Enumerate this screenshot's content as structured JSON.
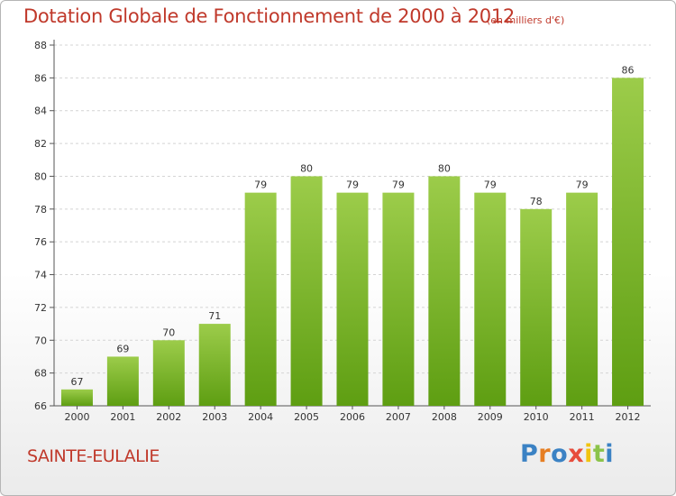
{
  "title": "Dotation Globale de Fonctionnement de 2000 à 2012",
  "subtitle": "(en milliers d'€)",
  "commune": "SAINTE-EULALIE",
  "logo": {
    "letters": [
      "P",
      "r",
      "o",
      "x",
      "i",
      "t",
      "i"
    ],
    "colors": [
      "#3b82c4",
      "#e67e22",
      "#3b82c4",
      "#e74c3c",
      "#f1c40f",
      "#8bc34a",
      "#3b82c4"
    ]
  },
  "chart_data": {
    "type": "bar",
    "categories": [
      "2000",
      "2001",
      "2002",
      "2003",
      "2004",
      "2005",
      "2006",
      "2007",
      "2008",
      "2009",
      "2010",
      "2011",
      "2012"
    ],
    "values": [
      67,
      69,
      70,
      71,
      79,
      80,
      79,
      79,
      80,
      79,
      78,
      79,
      86
    ],
    "data_labels": [
      "67",
      "69",
      "70",
      "71",
      "79",
      "80",
      "79",
      "79",
      "80",
      "79",
      "78",
      "79",
      "86"
    ],
    "title": "Dotation Globale de Fonctionnement de 2000 à 2012",
    "subtitle": "(en milliers d'€)",
    "xlabel": "",
    "ylabel": "",
    "ylim": [
      66,
      88
    ],
    "yticks": [
      66,
      68,
      70,
      72,
      74,
      76,
      78,
      80,
      82,
      84,
      86,
      88
    ],
    "grid": true,
    "legend": "none",
    "bar_color_top": "#9ccc4a",
    "bar_color_bottom": "#5e9e12"
  }
}
